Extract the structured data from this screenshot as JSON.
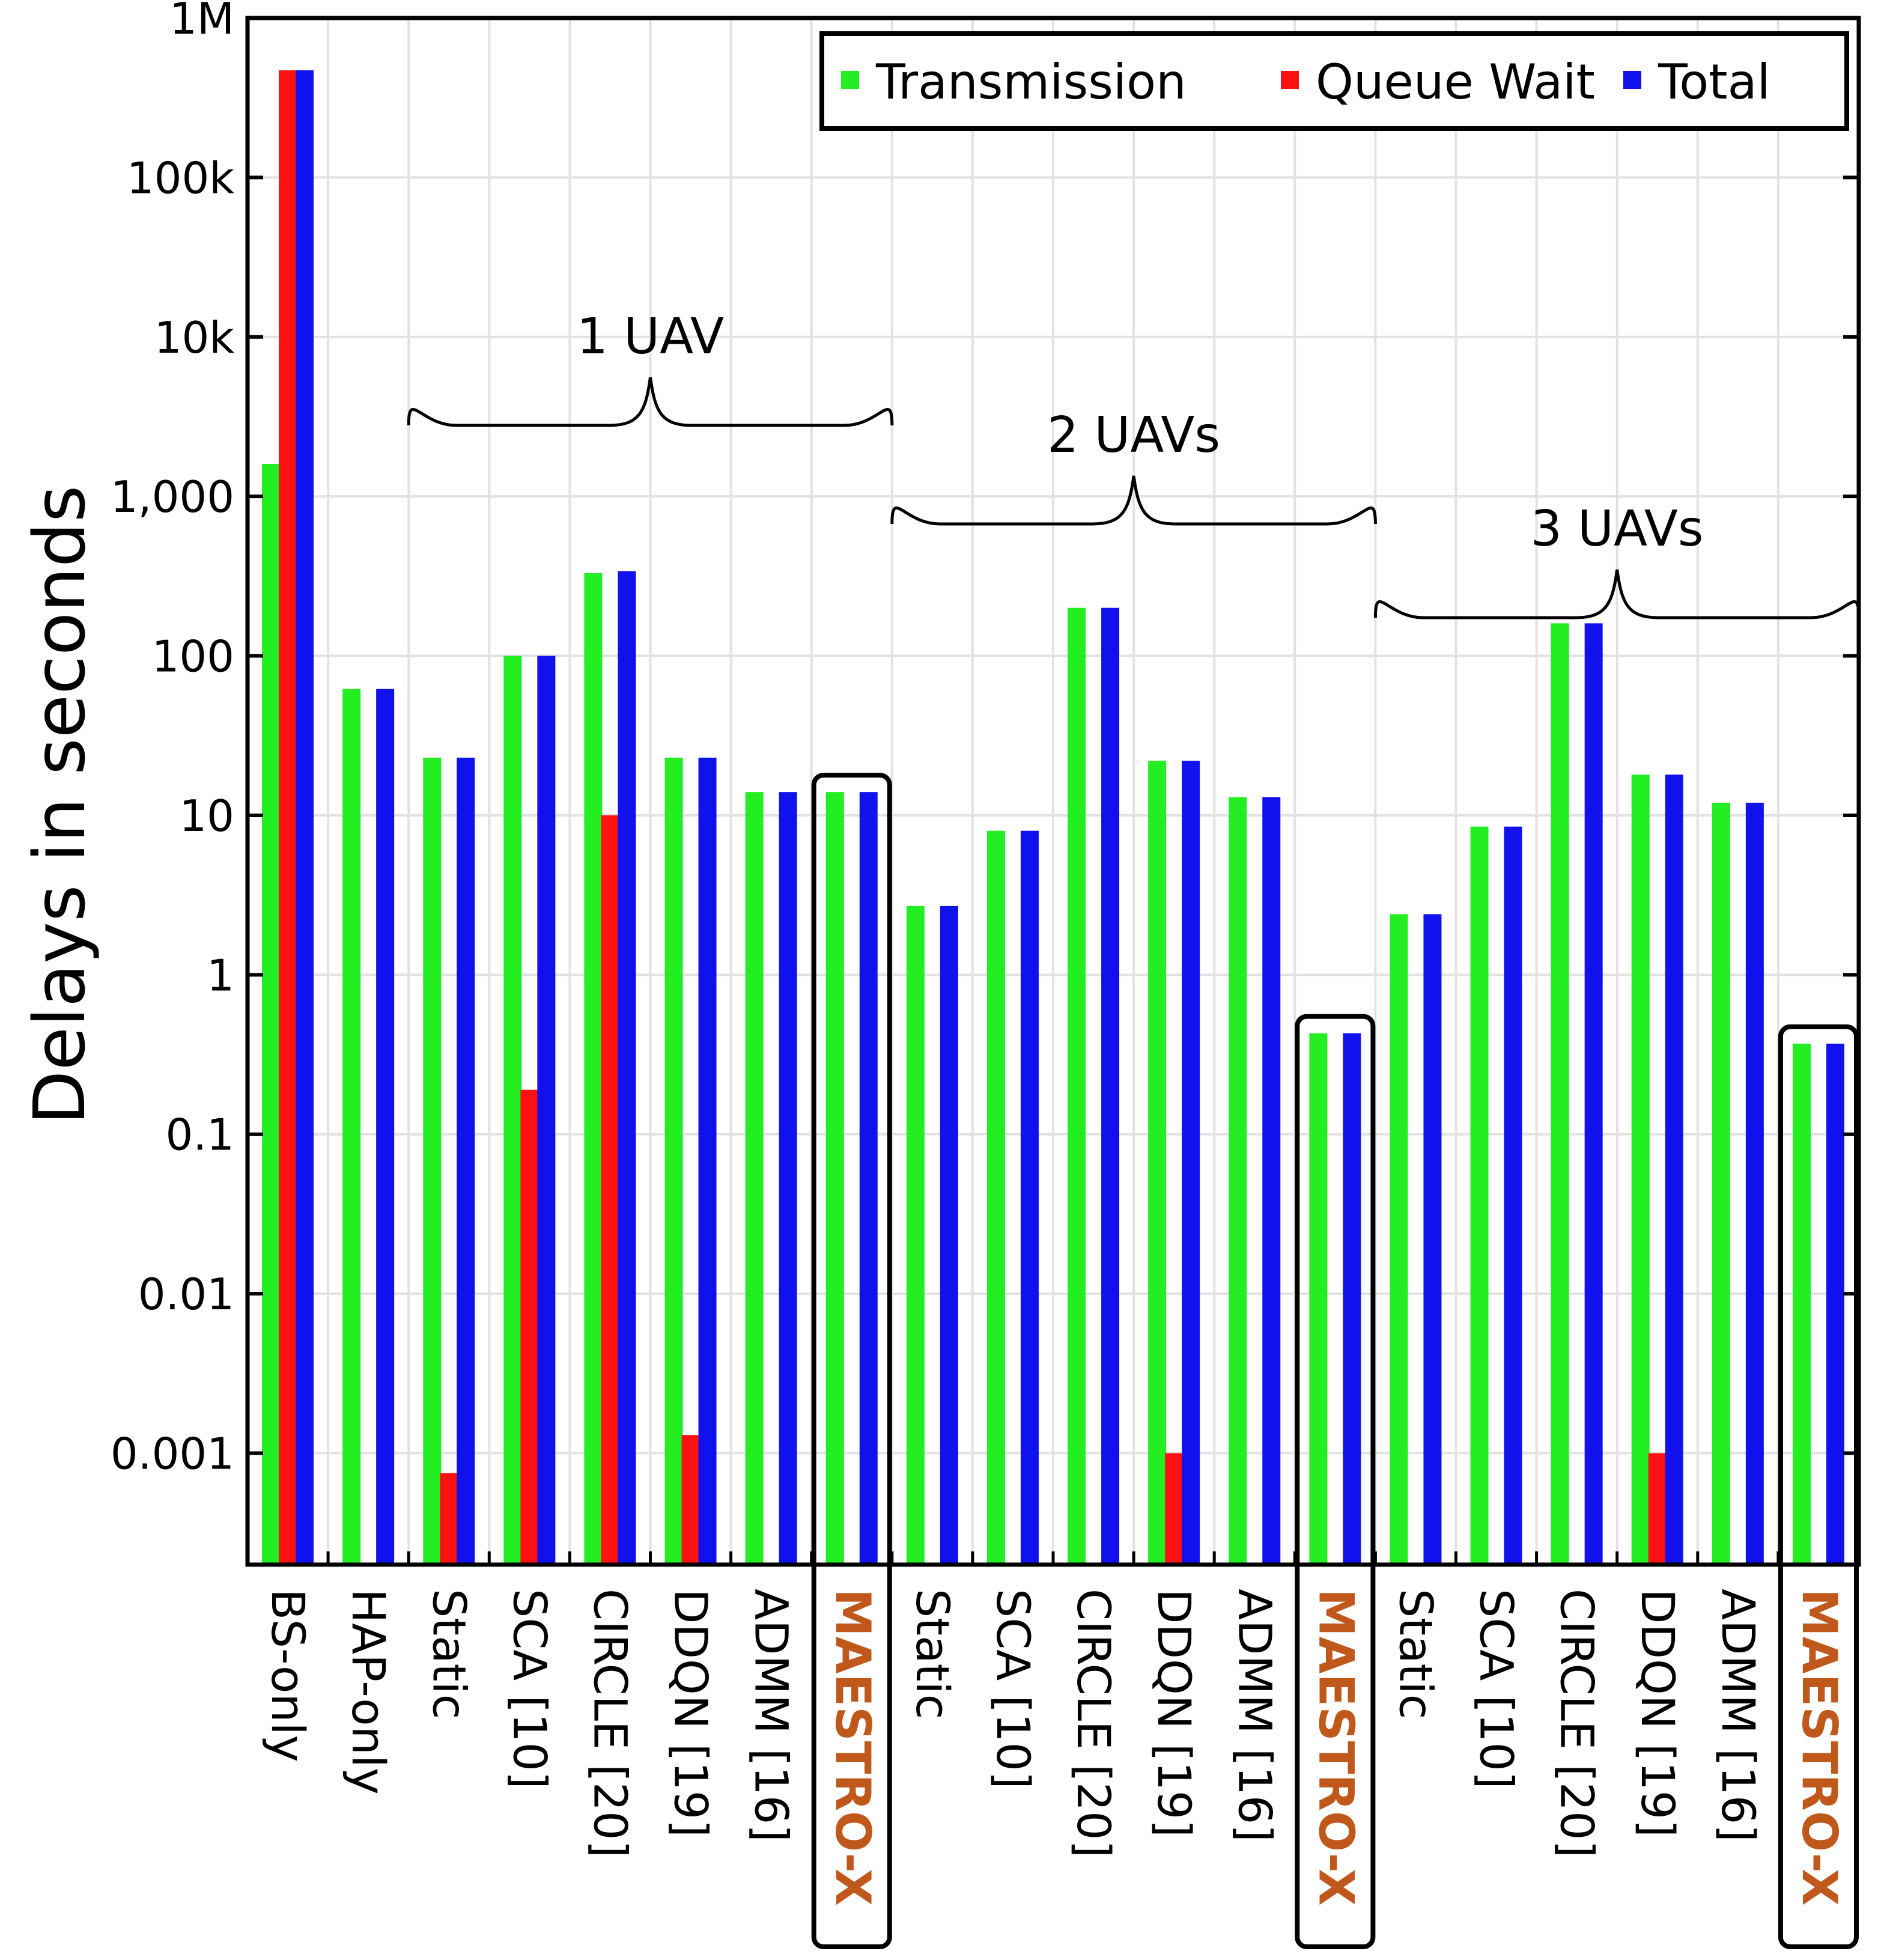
{
  "chart_data": {
    "type": "bar",
    "ylabel": "Delays in seconds",
    "yscale": "log",
    "ylim": [
      0.0002,
      1000000
    ],
    "yticks": [
      0.001,
      0.01,
      0.1,
      1,
      10,
      100,
      1000,
      10000,
      100000,
      1000000
    ],
    "ytick_labels": [
      "0.001",
      "0.01",
      "0.1",
      "1",
      "10",
      "100",
      "1,000",
      "10k",
      "100k",
      "1M"
    ],
    "grid": true,
    "legend_position": "top-right",
    "categories": [
      "BS-only",
      "HAP-only",
      "Static",
      "SCA [10]",
      "CIRCLE [20]",
      "DDQN [19]",
      "ADMM [16]",
      "MAESTRO-X",
      "Static",
      "SCA [10]",
      "CIRCLE [20]",
      "DDQN [19]",
      "ADMM [16]",
      "MAESTRO-X",
      "Static",
      "SCA [10]",
      "CIRCLE [20]",
      "DDQN [19]",
      "ADMM [16]",
      "MAESTRO-X"
    ],
    "highlight": [
      false,
      false,
      false,
      false,
      false,
      false,
      false,
      true,
      false,
      false,
      false,
      false,
      false,
      true,
      false,
      false,
      false,
      false,
      false,
      true
    ],
    "groups": [
      {
        "label": "1 UAV",
        "start": 2,
        "end": 7
      },
      {
        "label": "2 UAVs",
        "start": 8,
        "end": 13
      },
      {
        "label": "3 UAVs",
        "start": 14,
        "end": 19
      }
    ],
    "series": [
      {
        "name": "Transmission",
        "color": "#22ee22",
        "values": [
          1600,
          62,
          23,
          100,
          330,
          23,
          14,
          14,
          2.7,
          8,
          200,
          22,
          13,
          0.43,
          2.4,
          8.5,
          160,
          18,
          12,
          0.37
        ]
      },
      {
        "name": "Queue Wait",
        "color": "#ff1111",
        "values": [
          470000,
          null,
          0.00075,
          0.19,
          10,
          0.0013,
          null,
          null,
          null,
          null,
          null,
          0.001,
          null,
          null,
          null,
          null,
          null,
          0.001,
          null,
          null
        ]
      },
      {
        "name": "Total",
        "color": "#1111ee",
        "values": [
          470000,
          62,
          23,
          100,
          340,
          23,
          14,
          14,
          2.7,
          8,
          200,
          22,
          13,
          0.43,
          2.4,
          8.5,
          160,
          18,
          12,
          0.37
        ]
      }
    ]
  }
}
